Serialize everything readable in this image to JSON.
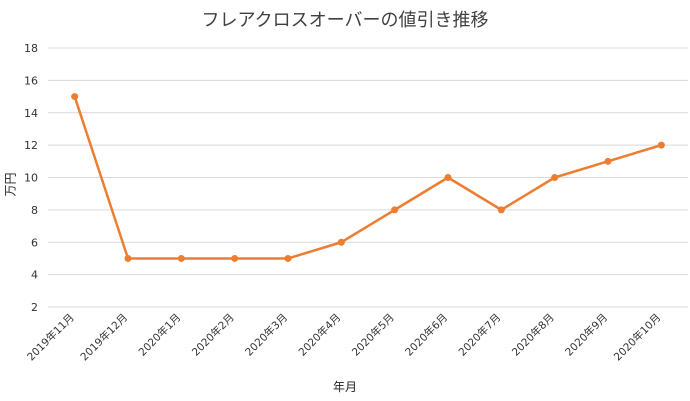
{
  "chart_data": {
    "type": "line",
    "title": "フレアクロスオーバーの値引き推移",
    "xlabel": "年月",
    "ylabel": "万円",
    "categories": [
      "2019年11月",
      "2019年12月",
      "2020年1月",
      "2020年2月",
      "2020年3月",
      "2020年4月",
      "2020年5月",
      "2020年6月",
      "2020年7月",
      "2020年8月",
      "2020年9月",
      "2020年10月"
    ],
    "values": [
      15,
      5,
      5,
      5,
      5,
      6,
      8,
      10,
      8,
      10,
      11,
      12
    ],
    "ylim": [
      2,
      18
    ],
    "yticks": [
      2,
      4,
      6,
      8,
      10,
      12,
      14,
      16,
      18
    ],
    "grid": true,
    "legend": "none",
    "line_color": "#ED7D31"
  }
}
